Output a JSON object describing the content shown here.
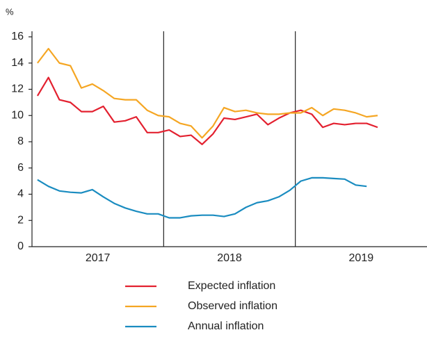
{
  "chart_data": {
    "type": "line",
    "y_unit": "%",
    "categories": [
      null,
      null,
      null,
      null,
      null,
      null,
      null,
      null,
      null,
      null,
      null,
      null,
      null,
      null,
      null,
      null,
      null,
      null,
      null,
      null,
      null,
      null,
      null,
      null,
      null,
      null,
      null,
      null,
      null,
      null,
      null,
      null,
      null,
      null,
      null,
      null
    ],
    "x_groups": [
      "2017",
      "2018",
      "2019"
    ],
    "ylim": [
      0,
      16
    ],
    "yticks": [
      0,
      2,
      4,
      6,
      8,
      10,
      12,
      14,
      16
    ],
    "series": [
      {
        "name": "Expected inflation",
        "color": "#e3202f",
        "values": [
          11.5,
          12.9,
          11.2,
          11.0,
          10.3,
          10.3,
          10.7,
          9.5,
          9.6,
          9.9,
          8.7,
          8.7,
          8.9,
          8.4,
          8.5,
          7.8,
          8.6,
          9.8,
          9.7,
          9.9,
          10.1,
          9.3,
          9.8,
          10.2,
          10.4,
          10.1,
          9.1,
          9.4,
          9.3,
          9.4,
          9.4,
          9.1,
          null,
          null,
          null,
          null
        ]
      },
      {
        "name": "Observed inflation",
        "color": "#f5a623",
        "values": [
          14.0,
          15.1,
          14.0,
          13.8,
          12.1,
          12.4,
          11.9,
          11.3,
          11.2,
          11.2,
          10.4,
          10.0,
          9.9,
          9.4,
          9.2,
          8.3,
          9.2,
          10.6,
          10.3,
          10.4,
          10.2,
          10.1,
          10.1,
          10.2,
          10.2,
          10.6,
          10.0,
          10.5,
          10.4,
          10.2,
          9.9,
          10.0,
          null,
          null,
          null,
          null
        ]
      },
      {
        "name": "Annual inflation",
        "color": "#1a8cc0",
        "values": [
          5.1,
          4.6,
          4.25,
          4.15,
          4.1,
          4.35,
          3.8,
          3.3,
          2.95,
          2.7,
          2.5,
          2.5,
          2.2,
          2.2,
          2.35,
          2.4,
          2.4,
          2.3,
          2.5,
          3.0,
          3.35,
          3.5,
          3.8,
          4.3,
          5.0,
          5.25,
          5.25,
          5.2,
          5.15,
          4.7,
          4.6,
          null,
          null,
          null,
          null,
          null
        ]
      }
    ]
  }
}
